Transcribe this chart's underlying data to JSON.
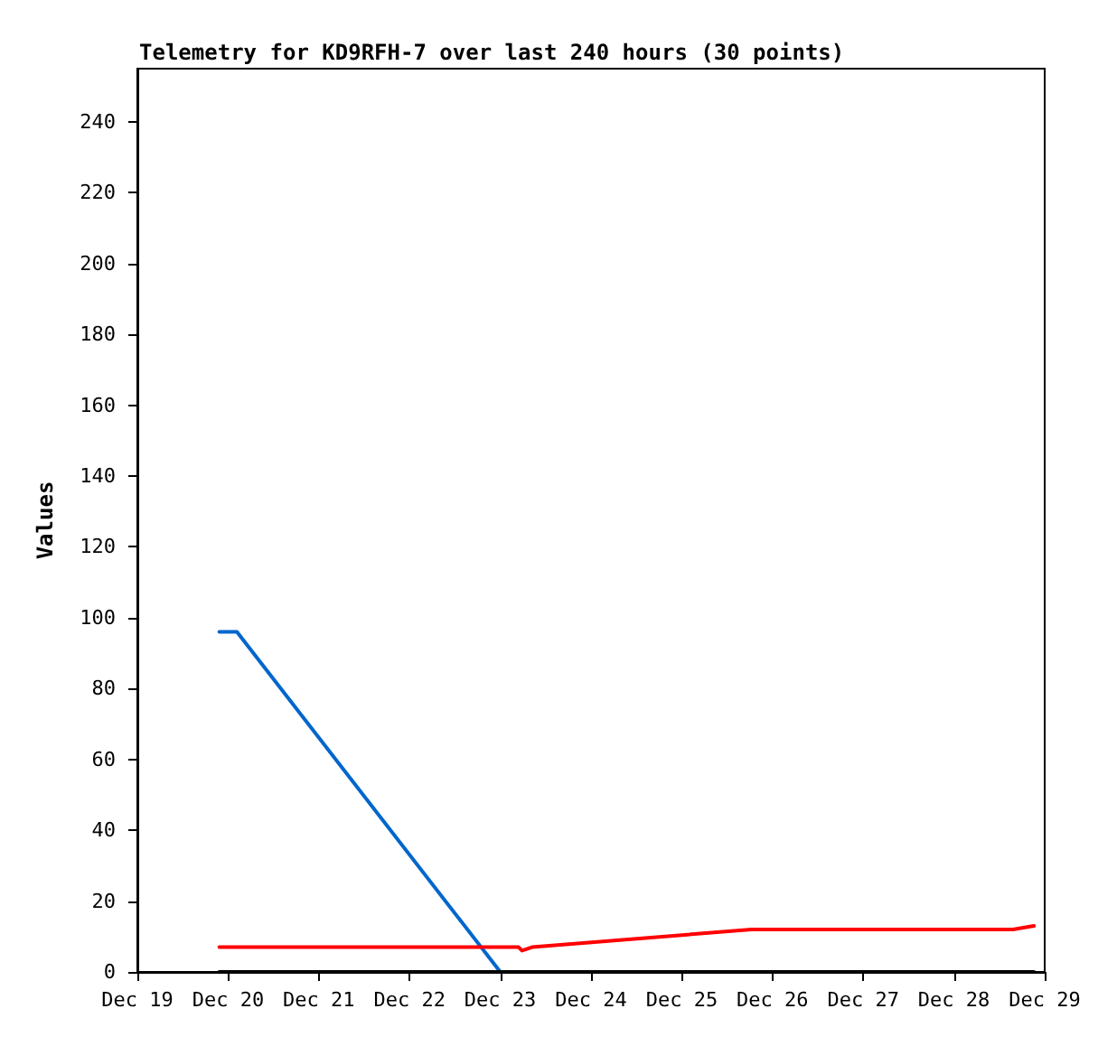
{
  "chart_data": {
    "type": "line",
    "title": "Telemetry for KD9RFH-7 over last 240 hours (30 points)",
    "ylabel": "Values",
    "xlim": [
      "--12-19",
      "--12-29"
    ],
    "xticks": [
      {
        "value": "--12-19",
        "label": "Dec 19"
      },
      {
        "value": "--12-20",
        "label": "Dec 20"
      },
      {
        "value": "--12-21",
        "label": "Dec 21"
      },
      {
        "value": "--12-22",
        "label": "Dec 22"
      },
      {
        "value": "--12-23",
        "label": "Dec 23"
      },
      {
        "value": "--12-24",
        "label": "Dec 24"
      },
      {
        "value": "--12-25",
        "label": "Dec 25"
      },
      {
        "value": "--12-26",
        "label": "Dec 26"
      },
      {
        "value": "--12-27",
        "label": "Dec 27"
      },
      {
        "value": "--12-28",
        "label": "Dec 28"
      },
      {
        "value": "--12-29",
        "label": "Dec 29"
      }
    ],
    "ylim": [
      0,
      255
    ],
    "yticks": [
      0,
      20,
      40,
      60,
      80,
      100,
      120,
      140,
      160,
      180,
      200,
      220,
      240
    ],
    "grid": false,
    "marker": "none",
    "line_style": "solid",
    "series": [
      {
        "color": "#0066cc",
        "x": [
          "--12-19T21:40",
          "--12-20T02:20",
          "--12-23T00:00"
        ],
        "values": [
          96,
          96,
          0
        ]
      },
      {
        "color": "#ff0000",
        "x": [
          "--12-19T21:40",
          "--12-23T04:50",
          "--12-23T05:45",
          "--12-23T08:25",
          "--12-25T18:25",
          "--12-28T15:35",
          "--12-28T21:10"
        ],
        "values": [
          7,
          7,
          6,
          7,
          12,
          12,
          13
        ]
      },
      {
        "color": "#000000",
        "x": [
          "--12-19T21:40",
          "--12-28T21:10"
        ],
        "values": [
          0,
          0
        ]
      }
    ]
  }
}
